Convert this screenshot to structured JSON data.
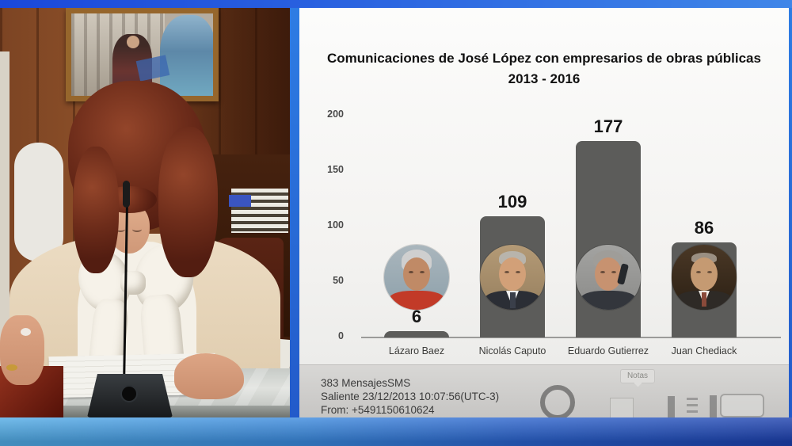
{
  "chart": {
    "title_line1": "Comunicaciones de José López con empresarios de obras públicas",
    "title_line2": "2013 - 2016",
    "y_ticks": [
      "200",
      "150",
      "100",
      "50",
      "0"
    ],
    "notes_badge": "Notas"
  },
  "sms_overlay": {
    "line1": "383 MensajesSMS",
    "line2": "Saliente 23/12/2013 10:07:56(UTC-3)",
    "line3": "From: +5491150610624"
  },
  "chart_data": {
    "type": "bar",
    "title": "Comunicaciones de José López con empresarios de obras públicas 2013 - 2016",
    "categories": [
      "Lázaro Baez",
      "Nicolás Caputo",
      "Eduardo Gutierrez",
      "Juan Chediack"
    ],
    "values": [
      6,
      109,
      177,
      86
    ],
    "xlabel": "",
    "ylabel": "",
    "ylim": [
      0,
      200
    ],
    "y_tick_step": 50,
    "grid": false,
    "legend": "none",
    "bar_color": "#5c5c5a",
    "annotation": "circular portrait photo of each businessman centered on his bar"
  },
  "colors": {
    "bar": "#5c5c5a",
    "frame_blue_top": "#1a48da",
    "frame_blue_bottom_left": "#52ace6",
    "frame_blue_bottom_right": "#1c40ae",
    "slide_background": "#f6f5f3"
  }
}
